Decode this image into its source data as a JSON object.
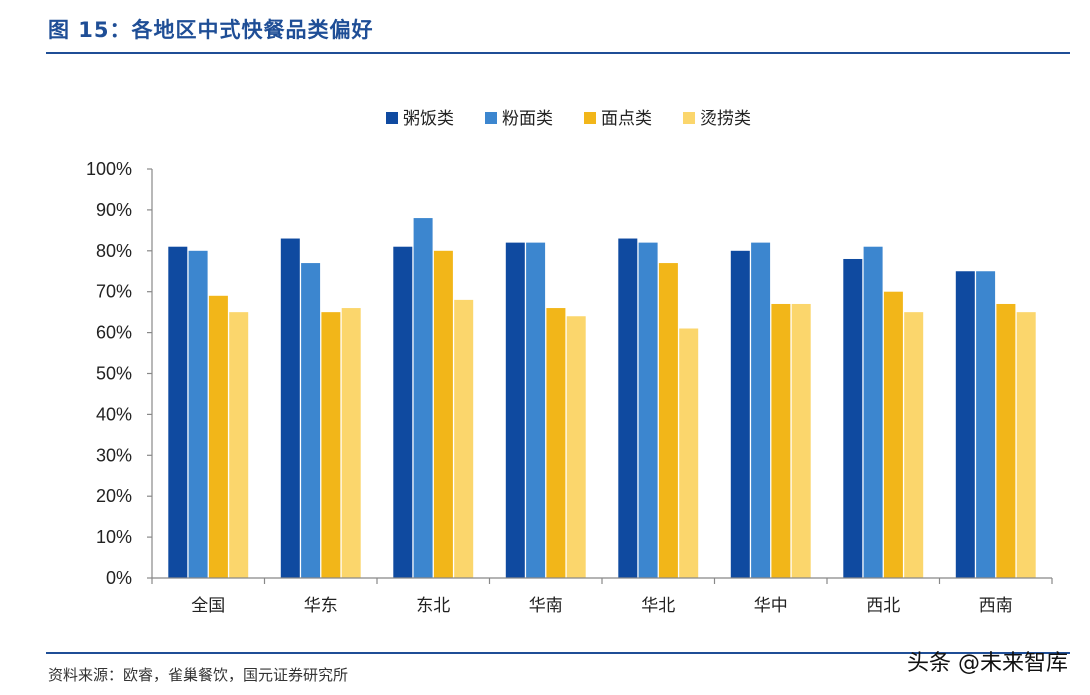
{
  "title": "图 15：各地区中式快餐品类偏好",
  "source": "资料来源：欧睿，雀巢餐饮，国元证券研究所",
  "watermark": "头条 @未来智库",
  "chart_data": {
    "type": "bar",
    "categories": [
      "全国",
      "华东",
      "东北",
      "华南",
      "华北",
      "华中",
      "西北",
      "西南"
    ],
    "series": [
      {
        "name": "粥饭类",
        "color": "#0f4aa0",
        "values": [
          81,
          83,
          81,
          82,
          83,
          80,
          78,
          75
        ]
      },
      {
        "name": "粉面类",
        "color": "#3c86cf",
        "values": [
          80,
          77,
          88,
          82,
          82,
          82,
          81,
          75
        ]
      },
      {
        "name": "面点类",
        "color": "#f2b619",
        "values": [
          69,
          65,
          80,
          66,
          77,
          67,
          70,
          67
        ]
      },
      {
        "name": "烫捞类",
        "color": "#fbd66c",
        "values": [
          65,
          66,
          68,
          64,
          61,
          67,
          65,
          65
        ]
      }
    ],
    "ylim": [
      0,
      100
    ],
    "yticks": [
      "0%",
      "10%",
      "20%",
      "30%",
      "40%",
      "50%",
      "60%",
      "70%",
      "80%",
      "90%",
      "100%"
    ],
    "legend_position": "top",
    "grid": false
  }
}
